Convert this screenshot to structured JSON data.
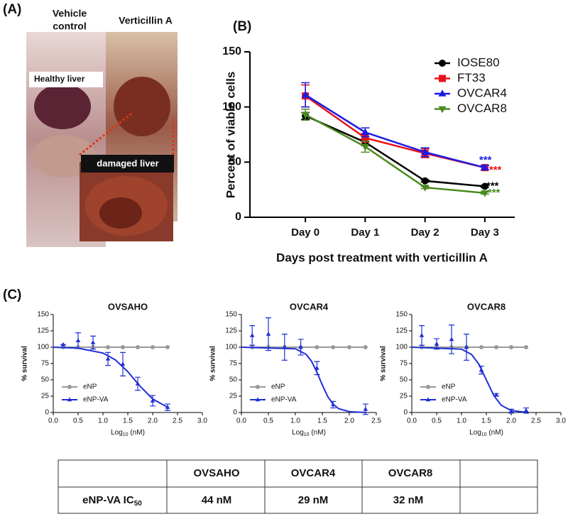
{
  "panels": [
    "(A)",
    "(B)",
    "(C)"
  ],
  "photo": {
    "left_title": [
      "Vehicle",
      "control"
    ],
    "right_title": "Verticillin A",
    "callouts": [
      "Healthy liver",
      "damaged liver"
    ]
  },
  "chart_data": [
    {
      "type": "line",
      "categories": [
        "Day 0",
        "Day 1",
        "Day 2",
        "Day 3"
      ],
      "ylim": [
        0,
        150
      ],
      "yticks": [
        0,
        50,
        100,
        150
      ],
      "ylabel": "Percent of viable cells",
      "xlabel": "Days post treatment with verticillin A",
      "legend": "upper right",
      "series": [
        {
          "name": "IOSE80",
          "color": "#000000",
          "marker": "circle",
          "values": [
            92,
            68,
            33,
            28
          ],
          "errors": [
            3,
            3,
            1,
            1
          ],
          "annotation": "***"
        },
        {
          "name": "FT33",
          "color": "#e8101a",
          "marker": "square",
          "values": [
            110,
            72,
            58,
            45
          ],
          "errors": [
            10,
            4,
            4,
            2
          ],
          "annotation": "***"
        },
        {
          "name": "OVCAR4",
          "color": "#1a1ae6",
          "marker": "triangle-up",
          "values": [
            111,
            77,
            59,
            45
          ],
          "errors": [
            11,
            4,
            4,
            2
          ],
          "annotation": "***"
        },
        {
          "name": "OVCAR8",
          "color": "#4a8a1e",
          "marker": "triangle-down",
          "values": [
            93,
            64,
            27,
            22
          ],
          "errors": [
            5,
            5,
            1,
            1
          ],
          "annotation": "***"
        }
      ]
    },
    {
      "type": "scatter",
      "title": "OVSAHO",
      "xlim": [
        0,
        3
      ],
      "xticks": [
        {
          "value": 0,
          "label": "0.0"
        },
        {
          "value": 0.5,
          "label": "0.5"
        },
        {
          "value": 1,
          "label": "1.0"
        },
        {
          "value": 1.5,
          "label": "1.5"
        },
        {
          "value": 2,
          "label": "2.0"
        },
        {
          "value": 2.5,
          "label": "2.5"
        },
        {
          "value": 3,
          "label": "3.0"
        }
      ],
      "ylim": [
        0,
        150
      ],
      "yticks": [
        0,
        25,
        50,
        75,
        100,
        125,
        150
      ],
      "ylabel": "% survival",
      "xlabel": [
        "Log",
        "10",
        " (nM)"
      ],
      "legend": "lower left",
      "series": [
        {
          "name": "eNP",
          "color": "#999999",
          "marker": "circle",
          "x": [
            0.2,
            0.5,
            0.8,
            1.1,
            1.4,
            1.7,
            2.0,
            2.3
          ],
          "values": [
            100,
            100,
            100,
            100,
            100,
            100,
            100,
            100
          ]
        },
        {
          "name": "eNP-VA",
          "color": "#1f2fd6",
          "marker": "triangle-up",
          "x": [
            0.2,
            0.5,
            0.8,
            1.1,
            1.4,
            1.7,
            2.0,
            2.3
          ],
          "values": [
            104,
            110,
            107,
            82,
            74,
            44,
            18,
            8
          ],
          "errors": [
            0,
            12,
            10,
            10,
            18,
            10,
            8,
            5
          ],
          "fit": {
            "x": [
              0,
              0.5,
              1.0,
              1.25,
              1.5,
              1.75,
              2.0,
              2.3
            ],
            "values": [
              100,
              98.5,
              91,
              80.6,
              62.5,
              40,
              20.8,
              8
            ]
          }
        }
      ]
    },
    {
      "type": "scatter",
      "title": "OVCAR4",
      "xlim": [
        0,
        2.5
      ],
      "xticks": [
        {
          "value": 0,
          "label": "0.0"
        },
        {
          "value": 0.5,
          "label": "0.5"
        },
        {
          "value": 1,
          "label": "1.0"
        },
        {
          "value": 1.5,
          "label": "1.5"
        },
        {
          "value": 2,
          "label": "2.0"
        },
        {
          "value": 2.5,
          "label": "2.5"
        }
      ],
      "ylim": [
        0,
        150
      ],
      "yticks": [
        0,
        25,
        50,
        75,
        100,
        125,
        150
      ],
      "ylabel": "% survival",
      "xlabel": [
        "Log",
        "10",
        " (nM)"
      ],
      "legend": "lower left",
      "series": [
        {
          "name": "eNP",
          "color": "#999999",
          "marker": "circle",
          "x": [
            0.2,
            0.5,
            0.8,
            1.1,
            1.4,
            1.7,
            2.0,
            2.3
          ],
          "values": [
            100,
            100,
            100,
            100,
            100,
            100,
            100,
            100
          ]
        },
        {
          "name": "eNP-VA",
          "color": "#1f2fd6",
          "marker": "triangle-up",
          "x": [
            0.2,
            0.5,
            0.8,
            1.1,
            1.4,
            1.7,
            2.3
          ],
          "values": [
            118,
            120,
            100,
            100,
            68,
            12,
            5
          ],
          "errors": [
            15,
            25,
            20,
            12,
            10,
            5,
            8
          ],
          "fit": {
            "x": [
              0,
              1.0,
              1.2,
              1.3,
              1.4,
              1.5,
              1.6,
              1.7,
              1.8,
              2.0,
              2.3
            ],
            "values": [
              100,
              97.6,
              89,
              78.4,
              61.8,
              42,
              24.4,
              12.7,
              6,
              1.3,
              0
            ]
          }
        }
      ]
    },
    {
      "type": "scatter",
      "title": "OVCAR8",
      "xlim": [
        0,
        3
      ],
      "xticks": [
        {
          "value": 0,
          "label": "0.0"
        },
        {
          "value": 0.5,
          "label": "0.5"
        },
        {
          "value": 1,
          "label": "1.0"
        },
        {
          "value": 1.5,
          "label": "1.5"
        },
        {
          "value": 2,
          "label": "2.0"
        },
        {
          "value": 2.5,
          "label": "2.5"
        },
        {
          "value": 3,
          "label": "3.0"
        }
      ],
      "ylim": [
        0,
        150
      ],
      "yticks": [
        0,
        25,
        50,
        75,
        100,
        125,
        150
      ],
      "ylabel": "% survival",
      "xlabel": [
        "Log",
        "10",
        " (nM)"
      ],
      "legend": "lower left",
      "series": [
        {
          "name": "eNP",
          "color": "#999999",
          "marker": "circle",
          "x": [
            0.2,
            0.5,
            0.8,
            1.1,
            1.4,
            1.7,
            2.0,
            2.3
          ],
          "values": [
            100,
            100,
            100,
            100,
            100,
            100,
            100,
            100
          ]
        },
        {
          "name": "eNP-VA",
          "color": "#1f2fd6",
          "marker": "triangle-up",
          "x": [
            0.2,
            0.5,
            0.8,
            1.1,
            1.4,
            1.7,
            2.0,
            2.3
          ],
          "values": [
            118,
            105,
            112,
            100,
            65,
            27,
            2,
            3
          ],
          "errors": [
            15,
            8,
            22,
            20,
            6,
            2,
            3,
            4
          ],
          "fit": {
            "x": [
              0,
              1.0,
              1.2,
              1.35,
              1.5,
              1.65,
              1.8,
              2.0,
              2.3
            ],
            "values": [
              100,
              97,
              89,
              74,
              50,
              26,
              11,
              3,
              0.4
            ]
          }
        }
      ]
    }
  ],
  "table": {
    "columns": [
      "OVSAHO",
      "OVCAR4",
      "OVCAR8"
    ],
    "row_label": "eNP-VA IC",
    "row_label_sub": "50",
    "cells": [
      "44 nM",
      "29 nM",
      "32 nM"
    ]
  }
}
